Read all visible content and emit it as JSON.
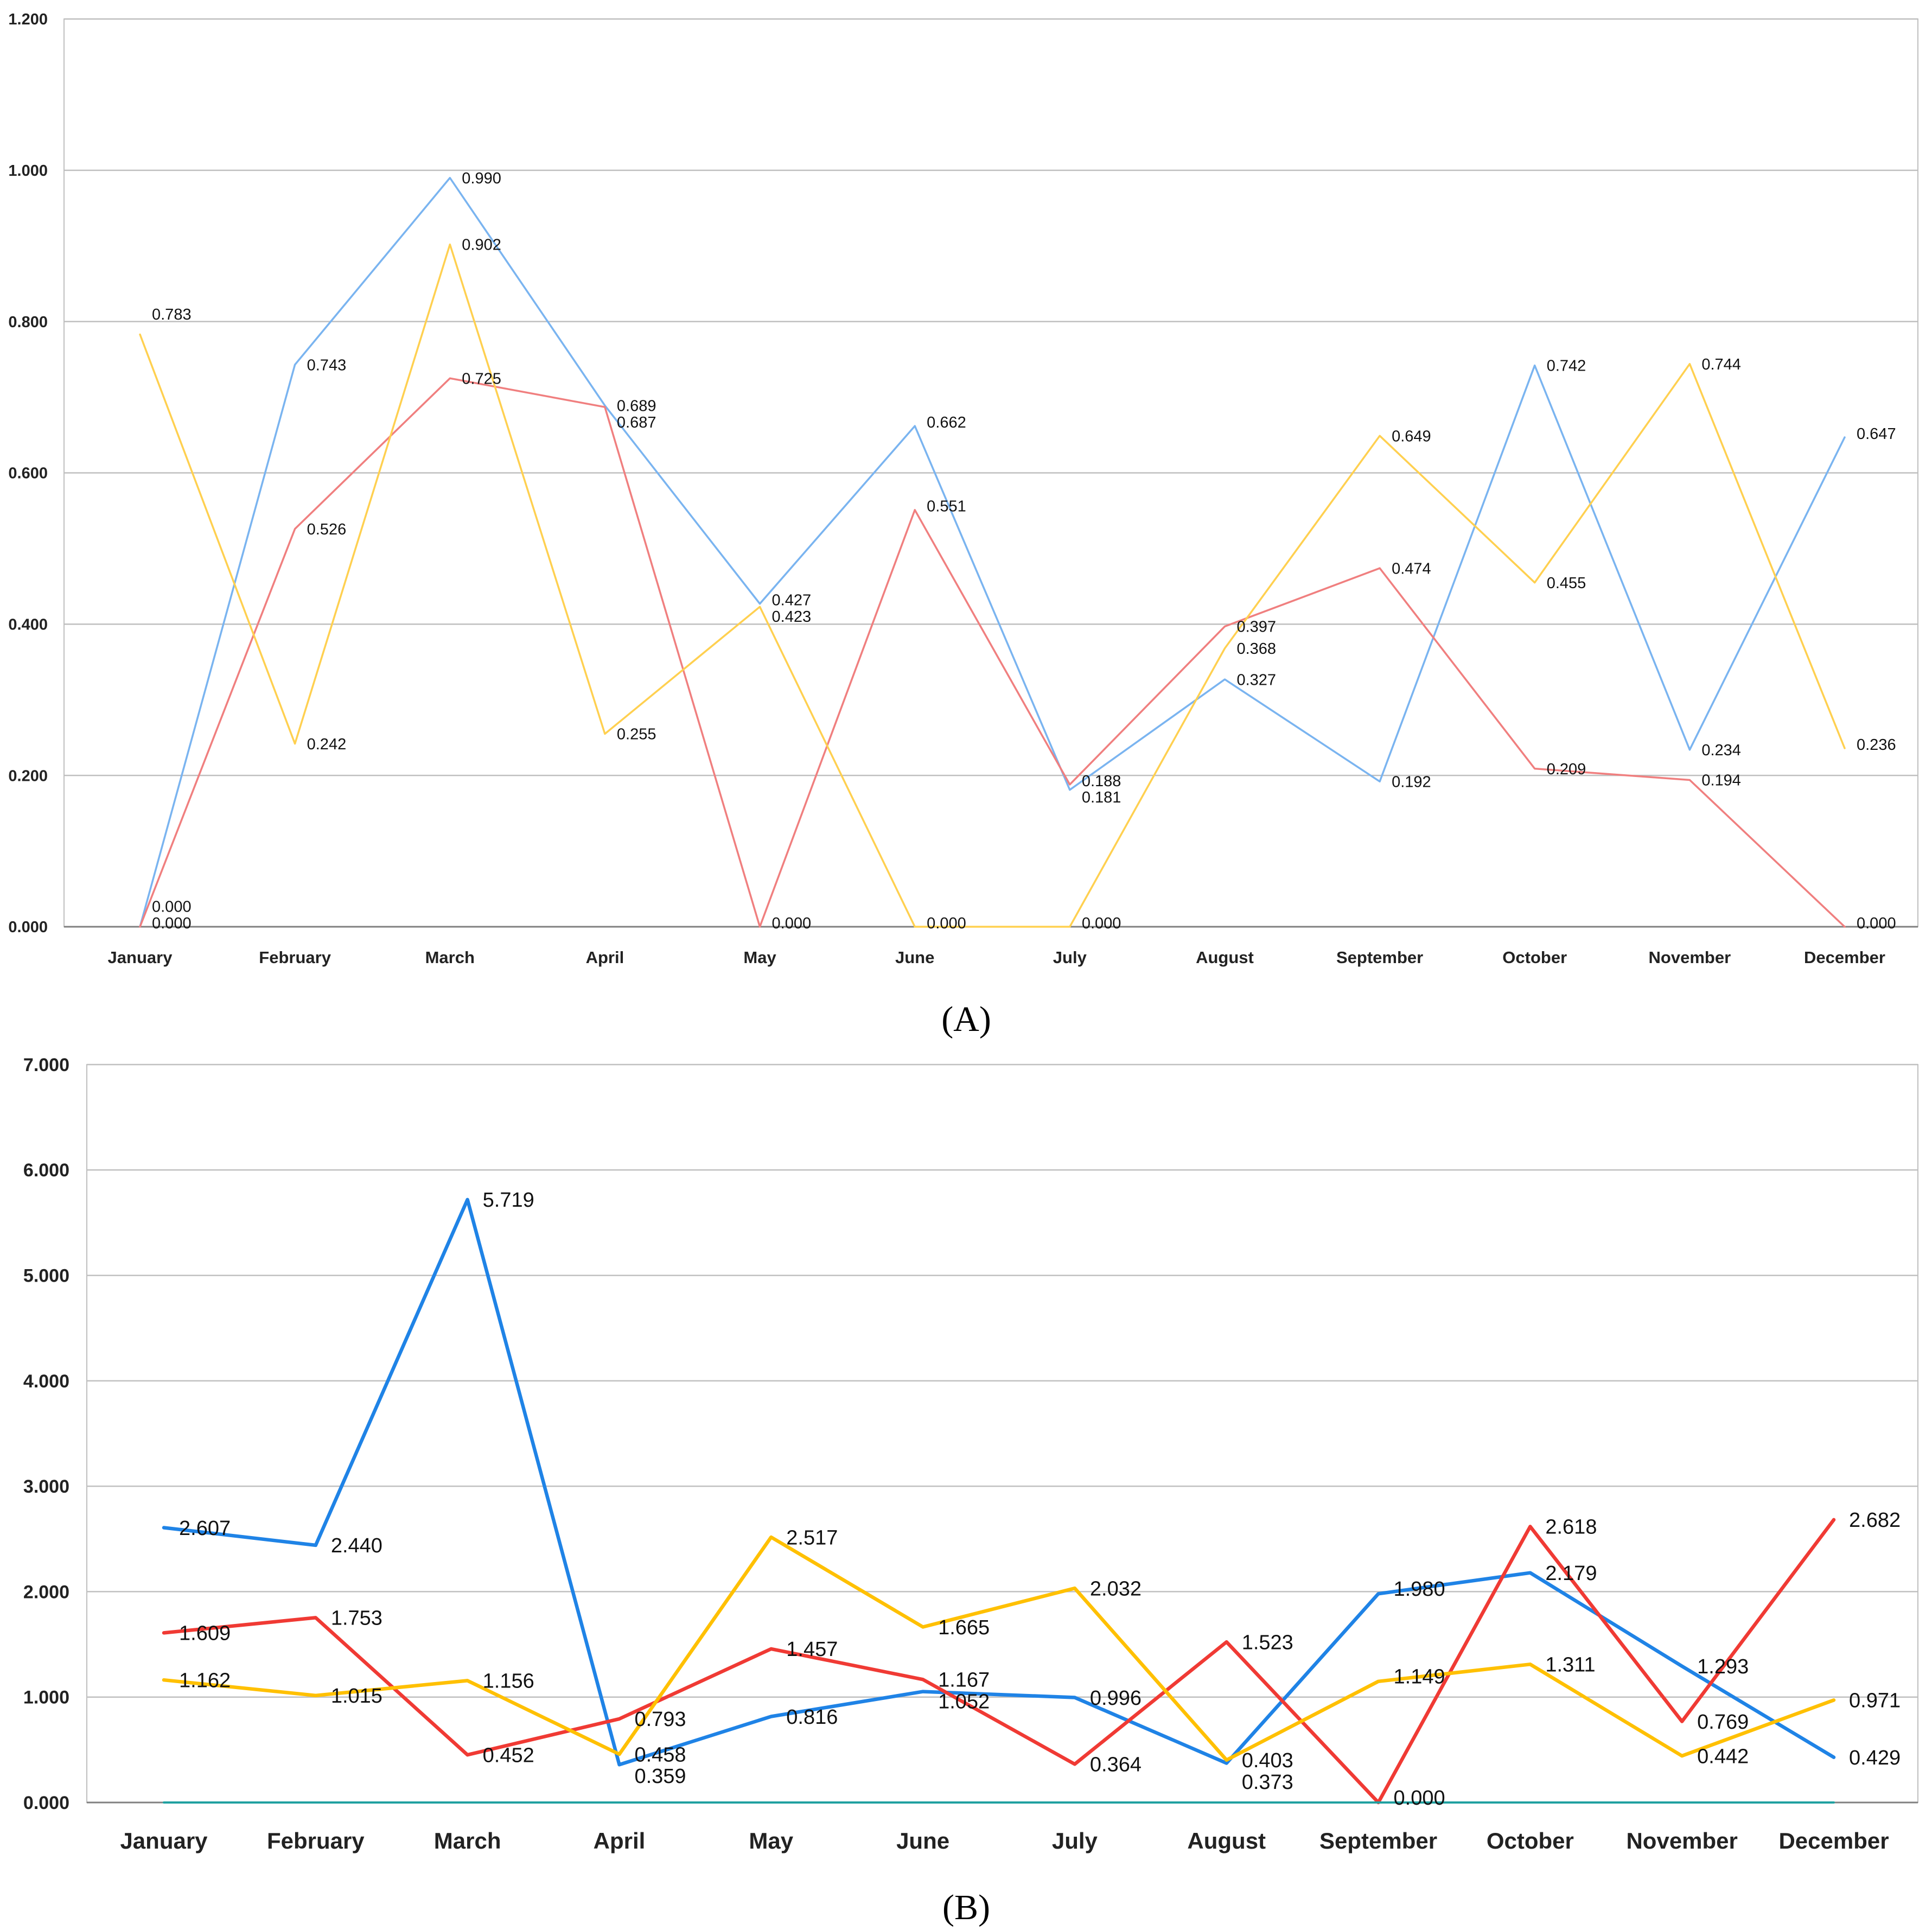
{
  "chart_data": [
    {
      "type": "line",
      "panel_label": "(A)",
      "categories": [
        "January",
        "February",
        "March",
        "April",
        "May",
        "June",
        "July",
        "August",
        "September",
        "October",
        "November",
        "December"
      ],
      "ylim": [
        0,
        1.2
      ],
      "yticks": [
        "0.000",
        "0.200",
        "0.400",
        "0.600",
        "0.800",
        "1.000",
        "1.200"
      ],
      "ytick_values": [
        0,
        0.2,
        0.4,
        0.6,
        0.8,
        1.0,
        1.2
      ],
      "grid": true,
      "series": [
        {
          "name": "blue",
          "color": "#7ab4f0",
          "values": [
            0.0,
            0.743,
            0.99,
            0.689,
            0.427,
            0.662,
            0.181,
            0.327,
            0.192,
            0.742,
            0.234,
            0.647
          ]
        },
        {
          "name": "red",
          "color": "#f07f7f",
          "values": [
            0.0,
            0.526,
            0.725,
            0.687,
            0.0,
            0.551,
            0.188,
            0.397,
            0.474,
            0.209,
            0.194,
            0.0
          ]
        },
        {
          "name": "yellow",
          "color": "#ffd050",
          "values": [
            0.783,
            0.242,
            0.902,
            0.255,
            0.423,
            0.0,
            0.0,
            0.368,
            0.649,
            0.455,
            0.744,
            0.236
          ]
        }
      ],
      "labels": [
        {
          "t": "0.000",
          "i": 0,
          "v": 0.0
        },
        {
          "t": "0.000",
          "i": 0,
          "v": 0.0
        },
        {
          "t": "0.783",
          "i": 0,
          "v": 0.783
        },
        {
          "t": "0.743",
          "i": 1,
          "v": 0.743
        },
        {
          "t": "0.526",
          "i": 1,
          "v": 0.526
        },
        {
          "t": "0.242",
          "i": 1,
          "v": 0.242
        },
        {
          "t": "0.990",
          "i": 2,
          "v": 0.99
        },
        {
          "t": "0.902",
          "i": 2,
          "v": 0.902
        },
        {
          "t": "0.725",
          "i": 2,
          "v": 0.725
        },
        {
          "t": "0.689",
          "i": 3,
          "v": 0.689
        },
        {
          "t": "0.687",
          "i": 3,
          "v": 0.687
        },
        {
          "t": "0.255",
          "i": 3,
          "v": 0.255
        },
        {
          "t": "0.427",
          "i": 4,
          "v": 0.427
        },
        {
          "t": "0.423",
          "i": 4,
          "v": 0.423
        },
        {
          "t": "0.000",
          "i": 4,
          "v": 0.0
        },
        {
          "t": "0.662",
          "i": 5,
          "v": 0.662
        },
        {
          "t": "0.551",
          "i": 5,
          "v": 0.551
        },
        {
          "t": "0.000",
          "i": 5,
          "v": 0.0
        },
        {
          "t": "0.188",
          "i": 6,
          "v": 0.188
        },
        {
          "t": "0.181",
          "i": 6,
          "v": 0.181
        },
        {
          "t": "0.000",
          "i": 6,
          "v": 0.0
        },
        {
          "t": "0.397",
          "i": 7,
          "v": 0.397
        },
        {
          "t": "0.368",
          "i": 7,
          "v": 0.368
        },
        {
          "t": "0.327",
          "i": 7,
          "v": 0.327
        },
        {
          "t": "0.649",
          "i": 8,
          "v": 0.649
        },
        {
          "t": "0.474",
          "i": 8,
          "v": 0.474
        },
        {
          "t": "0.192",
          "i": 8,
          "v": 0.192
        },
        {
          "t": "0.742",
          "i": 9,
          "v": 0.742
        },
        {
          "t": "0.455",
          "i": 9,
          "v": 0.455
        },
        {
          "t": "0.209",
          "i": 9,
          "v": 0.209
        },
        {
          "t": "0.744",
          "i": 10,
          "v": 0.744
        },
        {
          "t": "0.234",
          "i": 10,
          "v": 0.234
        },
        {
          "t": "0.194",
          "i": 10,
          "v": 0.194
        },
        {
          "t": "0.647",
          "i": 11,
          "v": 0.647
        },
        {
          "t": "0.236",
          "i": 11,
          "v": 0.236
        },
        {
          "t": "0.000",
          "i": 11,
          "v": 0.0
        }
      ]
    },
    {
      "type": "line",
      "panel_label": "(B)",
      "categories": [
        "January",
        "February",
        "March",
        "April",
        "May",
        "June",
        "July",
        "August",
        "September",
        "October",
        "November",
        "December"
      ],
      "ylim": [
        0,
        7
      ],
      "yticks": [
        "0.000",
        "1.000",
        "2.000",
        "3.000",
        "4.000",
        "5.000",
        "6.000",
        "7.000"
      ],
      "ytick_values": [
        0,
        1,
        2,
        3,
        4,
        5,
        6,
        7
      ],
      "grid": true,
      "series": [
        {
          "name": "blue",
          "color": "#1f83e6",
          "values": [
            2.607,
            2.44,
            5.719,
            0.359,
            0.816,
            1.052,
            0.996,
            0.373,
            1.98,
            2.179,
            1.293,
            0.429
          ]
        },
        {
          "name": "red",
          "color": "#f03a34",
          "values": [
            1.609,
            1.753,
            0.452,
            0.793,
            1.457,
            1.167,
            0.364,
            1.523,
            0.0,
            2.618,
            0.769,
            2.682
          ]
        },
        {
          "name": "yellow",
          "color": "#ffc000",
          "values": [
            1.162,
            1.015,
            1.156,
            0.458,
            2.517,
            1.665,
            2.032,
            0.403,
            1.149,
            1.311,
            0.442,
            0.971
          ]
        },
        {
          "name": "teal",
          "color": "#20a0a0",
          "values": [
            0,
            0,
            0,
            0,
            0,
            0,
            0,
            0,
            0,
            0,
            0,
            0
          ]
        }
      ],
      "labels": [
        {
          "t": "2.607",
          "i": 0,
          "v": 2.607
        },
        {
          "t": "1.609",
          "i": 0,
          "v": 1.609
        },
        {
          "t": "1.162",
          "i": 0,
          "v": 1.162
        },
        {
          "t": "2.440",
          "i": 1,
          "v": 2.44
        },
        {
          "t": "1.753",
          "i": 1,
          "v": 1.753
        },
        {
          "t": "1.015",
          "i": 1,
          "v": 1.015
        },
        {
          "t": "5.719",
          "i": 2,
          "v": 5.719
        },
        {
          "t": "1.156",
          "i": 2,
          "v": 1.156
        },
        {
          "t": "0.452",
          "i": 2,
          "v": 0.452
        },
        {
          "t": "0.793",
          "i": 3,
          "v": 0.793
        },
        {
          "t": "0.458",
          "i": 3,
          "v": 0.458
        },
        {
          "t": "0.359",
          "i": 3,
          "v": 0.359
        },
        {
          "t": "2.517",
          "i": 4,
          "v": 2.517
        },
        {
          "t": "1.457",
          "i": 4,
          "v": 1.457
        },
        {
          "t": "0.816",
          "i": 4,
          "v": 0.816
        },
        {
          "t": "1.665",
          "i": 5,
          "v": 1.665
        },
        {
          "t": "1.167",
          "i": 5,
          "v": 1.167
        },
        {
          "t": "1.052",
          "i": 5,
          "v": 1.052
        },
        {
          "t": "2.032",
          "i": 6,
          "v": 2.032
        },
        {
          "t": "0.996",
          "i": 6,
          "v": 0.996
        },
        {
          "t": "0.364",
          "i": 6,
          "v": 0.364
        },
        {
          "t": "1.523",
          "i": 7,
          "v": 1.523
        },
        {
          "t": "0.403",
          "i": 7,
          "v": 0.403
        },
        {
          "t": "0.373",
          "i": 7,
          "v": 0.373
        },
        {
          "t": "1.980",
          "i": 8,
          "v": 1.98
        },
        {
          "t": "1.149",
          "i": 8,
          "v": 1.149
        },
        {
          "t": "0.000",
          "i": 8,
          "v": 0.0
        },
        {
          "t": "2.618",
          "i": 9,
          "v": 2.618
        },
        {
          "t": "2.179",
          "i": 9,
          "v": 2.179
        },
        {
          "t": "1.311",
          "i": 9,
          "v": 1.311
        },
        {
          "t": "1.293",
          "i": 10,
          "v": 1.293
        },
        {
          "t": "0.769",
          "i": 10,
          "v": 0.769
        },
        {
          "t": "0.442",
          "i": 10,
          "v": 0.442
        },
        {
          "t": "2.682",
          "i": 11,
          "v": 2.682
        },
        {
          "t": "0.971",
          "i": 11,
          "v": 0.971
        },
        {
          "t": "0.429",
          "i": 11,
          "v": 0.429
        }
      ]
    }
  ]
}
